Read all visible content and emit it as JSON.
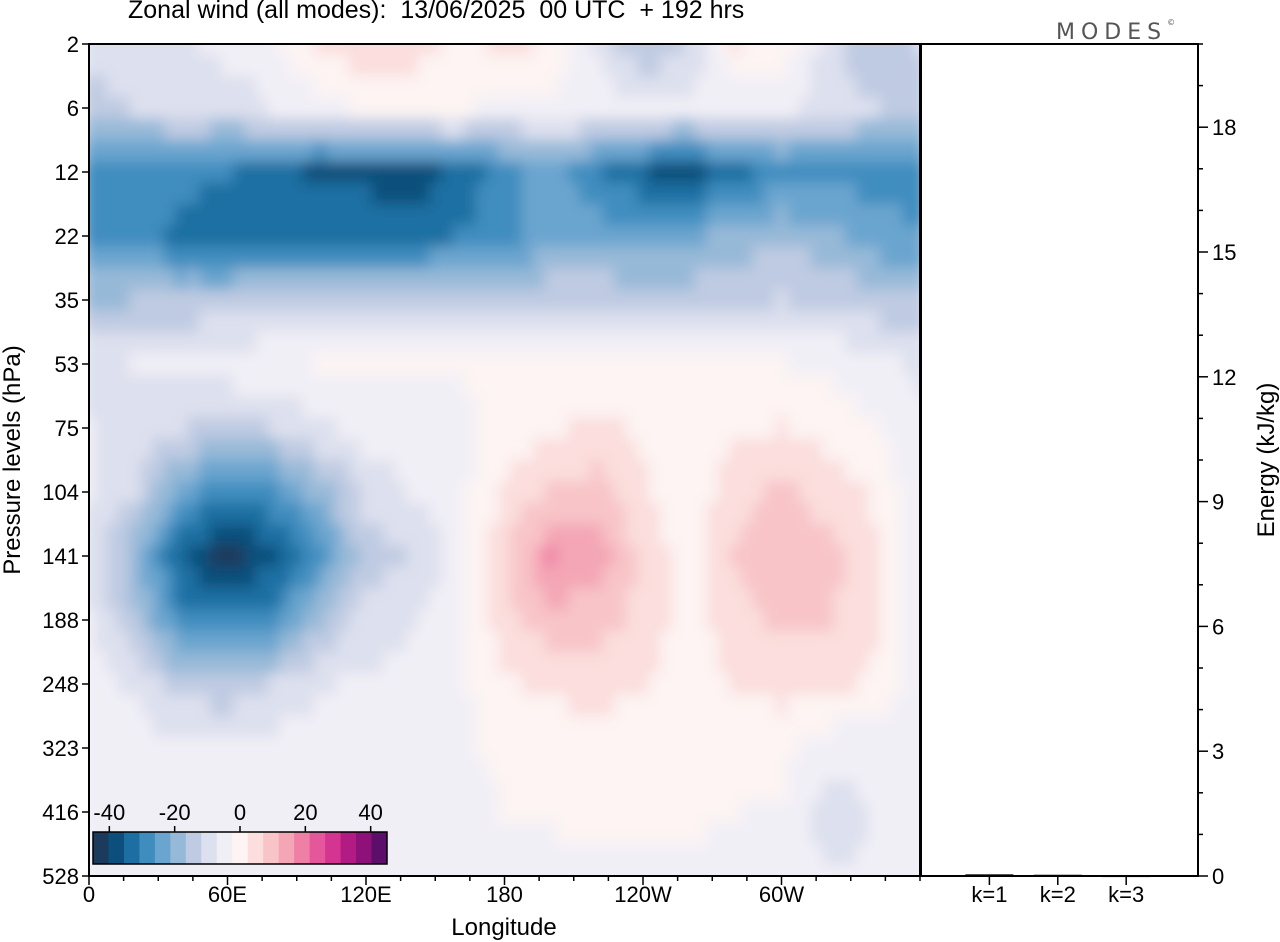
{
  "title": "Zonal wind (all modes):  13/06/2025  00 UTC  + 192 hrs",
  "brand": "MODES",
  "brand_mark": "©",
  "chart_data": [
    {
      "type": "heatmap",
      "title": "Zonal wind (all modes):  13/06/2025  00 UTC  + 192 hrs",
      "xlabel": "Longitude",
      "ylabel": "Pressure levels (hPa)",
      "x_ticks": [
        "0",
        "60E",
        "120E",
        "180",
        "120W",
        "60W"
      ],
      "x_tick_degrees_east": [
        0,
        60,
        120,
        180,
        240,
        300
      ],
      "xlim": [
        0,
        360
      ],
      "y_ticks": [
        2,
        6,
        12,
        22,
        35,
        53,
        75,
        104,
        141,
        188,
        248,
        323,
        416,
        528
      ],
      "y_axis_order": "top-to-bottom",
      "colorbar": {
        "tick_labels": [
          "-40",
          "-20",
          "0",
          "20",
          "40"
        ],
        "levels": [
          -45,
          -40,
          -35,
          -30,
          -25,
          -20,
          -15,
          -10,
          -5,
          0,
          5,
          10,
          15,
          20,
          25,
          30,
          35,
          40,
          45
        ],
        "colors": [
          "#1b3a5c",
          "#0c4f7c",
          "#1d6fa3",
          "#3f8dbf",
          "#6aa5cf",
          "#97b9d8",
          "#bfcbe2",
          "#dde0ee",
          "#f1eff6",
          "#fdf4f3",
          "#fbdedd",
          "#f8c4c8",
          "#f4a6b6",
          "#ef7fa4",
          "#e4579a",
          "#d43591",
          "#b21b84",
          "#8d1178",
          "#5d0d6a"
        ]
      },
      "field": [
        {
          "level": 2,
          "u": [
            -8,
            -6,
            -6,
            -3,
            -2,
            6,
            8,
            7,
            3,
            6,
            4,
            -6,
            -15,
            -10,
            5,
            4,
            -8,
            -15,
            -10
          ]
        },
        {
          "level": 6,
          "u": [
            -12,
            -10,
            -8,
            -8,
            -5,
            -3,
            1,
            3,
            2,
            -3,
            -2,
            -2,
            -4,
            -4,
            -3,
            -4,
            -8,
            -10,
            -12
          ]
        },
        {
          "level": 12,
          "u": [
            -30,
            -28,
            -28,
            -30,
            -33,
            -36,
            -36,
            -38,
            -33,
            -28,
            -22,
            -30,
            -35,
            -38,
            -32,
            -28,
            -27,
            -27,
            -27
          ]
        },
        {
          "level": 22,
          "u": [
            -27,
            -27,
            -32,
            -34,
            -34,
            -33,
            -33,
            -33,
            -30,
            -28,
            -22,
            -22,
            -22,
            -22,
            -18,
            -16,
            -18,
            -23,
            -25
          ]
        },
        {
          "level": 35,
          "u": [
            -16,
            -15,
            -14,
            -13,
            -12,
            -12,
            -12,
            -11,
            -11,
            -11,
            -11,
            -11,
            -12,
            -12,
            -11,
            -10,
            -11,
            -13,
            -15
          ]
        },
        {
          "level": 53,
          "u": [
            -7,
            -5,
            -3,
            -2,
            -1,
            0,
            0,
            0,
            0,
            1,
            1,
            1,
            1,
            1,
            0,
            0,
            -1,
            -3,
            -6
          ]
        },
        {
          "level": 75,
          "u": [
            -5,
            -6,
            -10,
            -12,
            -10,
            -6,
            -3,
            -2,
            -1,
            2,
            4,
            6,
            4,
            2,
            4,
            5,
            3,
            0,
            -4
          ]
        },
        {
          "level": 104,
          "u": [
            -5,
            -10,
            -22,
            -30,
            -26,
            -18,
            -8,
            -5,
            -2,
            6,
            10,
            12,
            6,
            1,
            8,
            11,
            8,
            4,
            -3
          ]
        },
        {
          "level": 141,
          "u": [
            -6,
            -18,
            -35,
            -42,
            -38,
            -26,
            -12,
            -10,
            -3,
            9,
            20,
            18,
            8,
            3,
            10,
            13,
            12,
            6,
            -3
          ]
        },
        {
          "level": 188,
          "u": [
            -5,
            -14,
            -28,
            -30,
            -26,
            -16,
            -8,
            -6,
            -2,
            8,
            13,
            12,
            8,
            3,
            8,
            11,
            10,
            6,
            -3
          ]
        },
        {
          "level": 248,
          "u": [
            -3,
            -6,
            -12,
            -14,
            -10,
            -6,
            -4,
            -3,
            -1,
            4,
            6,
            7,
            5,
            2,
            5,
            7,
            6,
            4,
            -3
          ]
        },
        {
          "level": 323,
          "u": [
            -3,
            -3,
            -4,
            -4,
            -3,
            -2,
            -2,
            -2,
            -1,
            1,
            2,
            3,
            3,
            2,
            2,
            2,
            -3,
            -4,
            -2
          ]
        },
        {
          "level": 416,
          "u": [
            -3,
            -3,
            -2,
            -2,
            -2,
            -2,
            -3,
            -3,
            -2,
            0,
            1,
            2,
            3,
            1,
            0,
            -1,
            -7,
            -5,
            -2
          ]
        },
        {
          "level": 528,
          "u": [
            -3,
            -3,
            -2,
            -2,
            -3,
            -3,
            -3,
            -3,
            -2,
            -1,
            -2,
            -3,
            -2,
            -1,
            -2,
            -3,
            -5,
            -4,
            -3
          ]
        }
      ]
    },
    {
      "type": "bar",
      "ylabel": "Energy (kJ/kg)",
      "categories": [
        "k=1",
        "k=2",
        "k=3"
      ],
      "values": [
        0.04,
        0.03,
        0.01
      ],
      "ylim": [
        0,
        20
      ],
      "y_ticks": [
        0,
        3,
        6,
        9,
        12,
        15,
        18
      ]
    }
  ]
}
